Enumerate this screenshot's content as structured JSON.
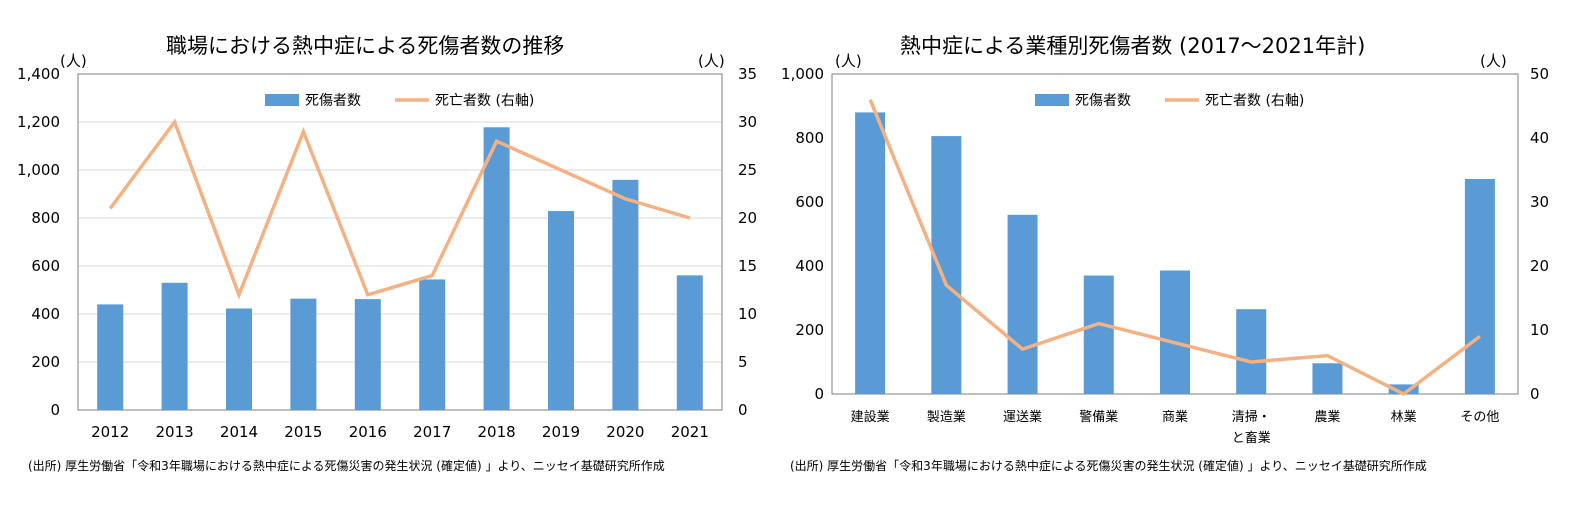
{
  "colors": {
    "bar": "#5b9bd5",
    "line": "#f4b183",
    "axis": "#7f7f7f",
    "grid": "#d9d9d9"
  },
  "charts": [
    {
      "title": "職場における熱中症による死傷者数の推移",
      "left_unit": "(人)",
      "right_unit": "(人)",
      "source": "(出所) 厚生労働省「令和3年職場における熱中症による死傷災害の発生状況 (確定値) 」より、ニッセイ基礎研究所作成",
      "legend": {
        "bar": "死傷者数",
        "line": "死亡者数 (右軸)"
      }
    },
    {
      "title": "熱中症による業種別死傷者数 (2017〜2021年計)",
      "left_unit": "(人)",
      "right_unit": "(人)",
      "source": "(出所) 厚生労働省「令和3年職場における熱中症による死傷災害の発生状況 (確定値) 」より、ニッセイ基礎研究所作成",
      "legend": {
        "bar": "死傷者数",
        "line": "死亡者数 (右軸)"
      }
    }
  ],
  "chart_data": [
    {
      "type": "bar",
      "title": "職場における熱中症による死傷者数の推移",
      "categories": [
        "2012",
        "2013",
        "2014",
        "2015",
        "2016",
        "2017",
        "2018",
        "2019",
        "2020",
        "2021"
      ],
      "series": [
        {
          "name": "死傷者数",
          "axis": "left",
          "type": "bar",
          "values": [
            440,
            530,
            423,
            464,
            462,
            544,
            1178,
            829,
            959,
            561
          ]
        },
        {
          "name": "死亡者数 (右軸)",
          "axis": "right",
          "type": "line",
          "values": [
            21,
            30,
            12,
            29,
            12,
            14,
            28,
            25,
            22,
            20
          ]
        }
      ],
      "ylim": [
        0,
        1400
      ],
      "yticks": [
        "0",
        "200",
        "400",
        "600",
        "800",
        "1,000",
        "1,200",
        "1,400"
      ],
      "ylim_right": [
        0,
        35
      ],
      "yticks_right": [
        "0",
        "5",
        "10",
        "15",
        "20",
        "25",
        "30",
        "35"
      ],
      "legend_position": "top-center",
      "grid": true
    },
    {
      "type": "bar",
      "title": "熱中症による業種別死傷者数 (2017〜2021年計)",
      "categories": [
        [
          "建設業"
        ],
        [
          "製造業"
        ],
        [
          "運送業"
        ],
        [
          "警備業"
        ],
        [
          "商業"
        ],
        [
          "清掃・",
          "と畜業"
        ],
        [
          "農業"
        ],
        [
          "林業"
        ],
        [
          "その他"
        ]
      ],
      "series": [
        {
          "name": "死傷者数",
          "axis": "left",
          "type": "bar",
          "values": [
            880,
            806,
            560,
            370,
            386,
            265,
            96,
            30,
            672
          ]
        },
        {
          "name": "死亡者数 (右軸)",
          "axis": "right",
          "type": "line",
          "values": [
            46,
            17,
            7,
            11,
            8,
            5,
            6,
            0,
            9
          ]
        }
      ],
      "ylim": [
        0,
        1000
      ],
      "yticks": [
        "0",
        "200",
        "400",
        "600",
        "800",
        "1,000"
      ],
      "ylim_right": [
        0,
        50
      ],
      "yticks_right": [
        "0",
        "10",
        "20",
        "30",
        "40",
        "50"
      ],
      "legend_position": "top-center",
      "grid": false
    }
  ]
}
